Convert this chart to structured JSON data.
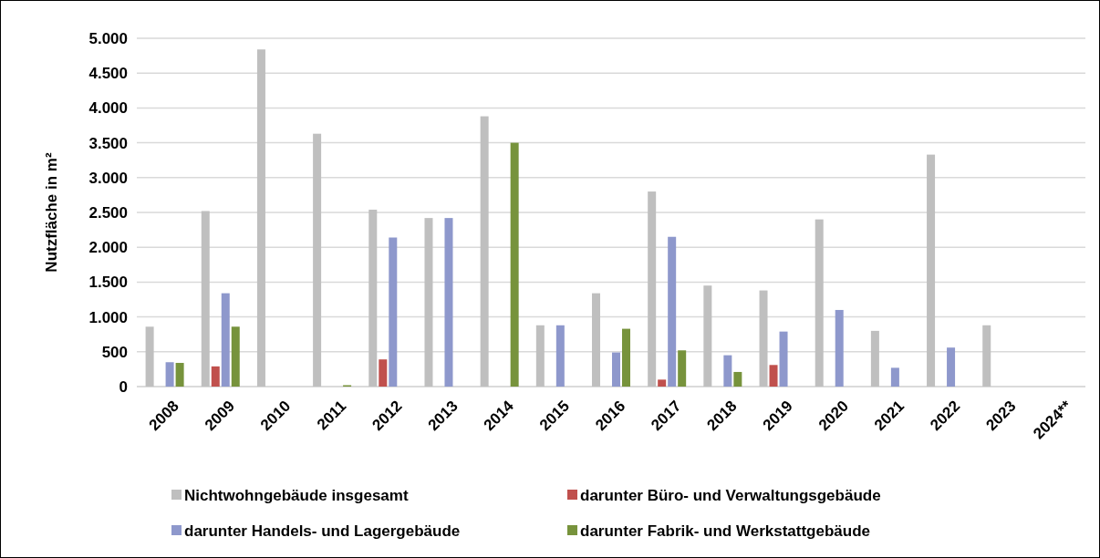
{
  "chart_data": {
    "type": "bar",
    "ylabel": "Nutzfläche in m²",
    "categories": [
      "2008",
      "2009",
      "2010",
      "2011",
      "2012",
      "2013",
      "2014",
      "2015",
      "2016",
      "2017",
      "2018",
      "2019",
      "2020",
      "2021",
      "2022",
      "2023",
      "2024**"
    ],
    "series": [
      {
        "name": "Nichtwohngebäude insgesamt",
        "color": "#bfbfbf",
        "values": [
          860,
          2520,
          4840,
          3630,
          2540,
          2420,
          3880,
          880,
          1340,
          2800,
          1450,
          1380,
          2400,
          800,
          3330,
          880,
          null
        ]
      },
      {
        "name": "darunter Büro- und Verwaltungsgebäude",
        "color": "#c0504d",
        "values": [
          null,
          290,
          null,
          null,
          390,
          null,
          null,
          null,
          null,
          100,
          null,
          310,
          null,
          null,
          null,
          null,
          null
        ]
      },
      {
        "name": "darunter Handels- und Lagergebäude",
        "color": "#8e98cc",
        "values": [
          350,
          1340,
          null,
          null,
          2140,
          2420,
          null,
          880,
          490,
          2150,
          450,
          790,
          1100,
          270,
          560,
          null,
          null
        ]
      },
      {
        "name": "darunter Fabrik- und Werkstattgebäude",
        "color": "#77933c",
        "values": [
          340,
          860,
          null,
          20,
          null,
          null,
          3500,
          null,
          830,
          520,
          210,
          null,
          null,
          null,
          null,
          null,
          null
        ]
      }
    ],
    "ylim": [
      0,
      5000
    ],
    "yticks": [
      0,
      500,
      {
        "value": 1000,
        "label": "1.000"
      },
      {
        "value": 1500,
        "label": "1.500"
      },
      {
        "value": 2000,
        "label": "2.000"
      },
      {
        "value": 2500,
        "label": "2.500"
      },
      {
        "value": 3000,
        "label": "3.000"
      },
      {
        "value": 3500,
        "label": "3.500"
      },
      {
        "value": 4000,
        "label": "4.000"
      },
      {
        "value": 4500,
        "label": "4.500"
      },
      {
        "value": 5000,
        "label": "5.000"
      }
    ],
    "grid": "y",
    "legend": "bottom"
  }
}
